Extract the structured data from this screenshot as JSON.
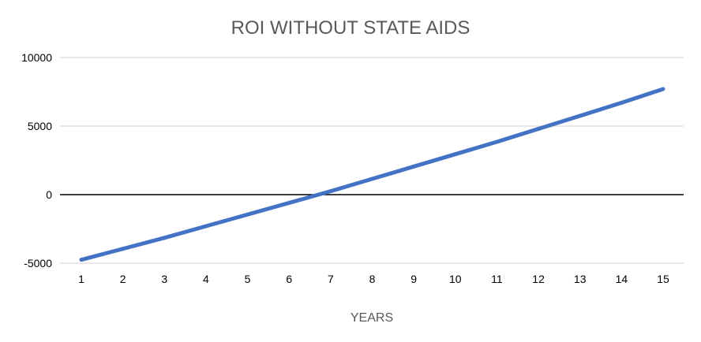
{
  "chart_data": {
    "type": "line",
    "title": "ROI WITHOUT STATE AIDS",
    "xlabel": "YEARS",
    "ylabel": "",
    "categories": [
      "1",
      "2",
      "3",
      "4",
      "5",
      "6",
      "7",
      "8",
      "9",
      "10",
      "11",
      "12",
      "13",
      "14",
      "15"
    ],
    "series": [
      {
        "values": [
          -4750,
          -3950,
          -3150,
          -2300,
          -1450,
          -600,
          250,
          1150,
          2050,
          2950,
          3850,
          4800,
          5750,
          6700,
          7700
        ],
        "color": "#4472C4"
      }
    ],
    "yticks": [
      "-5000",
      "0",
      "5000",
      "10000"
    ],
    "ylim": [
      -5000,
      10000
    ],
    "grid": true,
    "legend": "none",
    "colors": {
      "gridline": "#D9D9D9",
      "zero_line": "#000000",
      "title": "#595959",
      "tick_text": "#000000",
      "axis_title": "#595959"
    }
  }
}
